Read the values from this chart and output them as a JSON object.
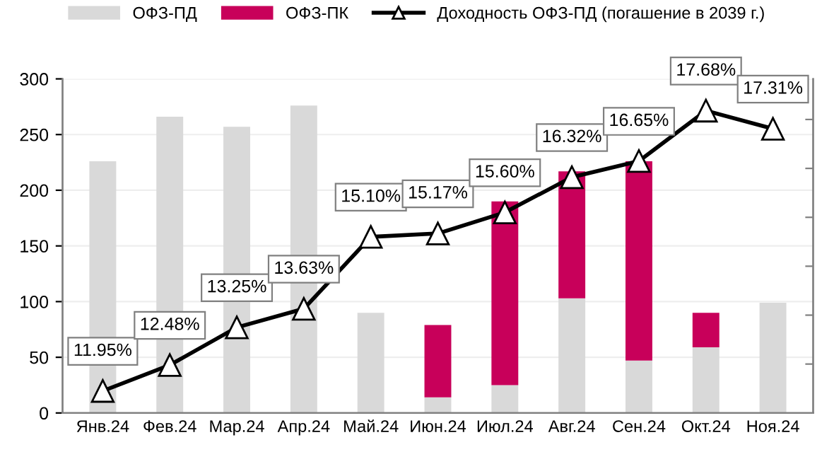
{
  "chart_data": {
    "type": "bar",
    "stacked": true,
    "categories": [
      "Янв.24",
      "Фев.24",
      "Мар.24",
      "Апр.24",
      "Май.24",
      "Июн.24",
      "Июл.24",
      "Авг.24",
      "Сен.24",
      "Окт.24",
      "Ноя.24"
    ],
    "series": [
      {
        "name": "ОФЗ-ПД",
        "color": "#d9d9d9",
        "values": [
          226,
          266,
          257,
          276,
          90,
          14,
          25,
          103,
          47,
          59,
          99
        ]
      },
      {
        "name": "ОФЗ-ПК",
        "color": "#c8005a",
        "values": [
          null,
          null,
          null,
          null,
          null,
          65,
          165,
          114,
          179,
          31,
          null
        ]
      },
      {
        "name": "Доходность ОФЗ-ПД (погашение в 2039 г.)",
        "type": "line",
        "axis": "y2",
        "color": "#000000",
        "marker": "triangle",
        "line_style": "solid",
        "values": [
          11.95,
          12.48,
          13.25,
          13.63,
          15.1,
          15.17,
          15.6,
          16.32,
          16.65,
          17.68,
          17.31
        ],
        "value_labels": [
          "11.95%",
          "12.48%",
          "13.25%",
          "13.63%",
          "15.10%",
          "15.17%",
          "15.60%",
          "16.32%",
          "16.65%",
          "17.68%",
          "17.31%"
        ]
      }
    ],
    "ylim": [
      0,
      300
    ],
    "yticks": [
      0,
      50,
      100,
      150,
      200,
      250,
      300
    ],
    "y2lim": [
      11.5,
      18.33
    ],
    "y2ticks": [
      {
        "value": 12.5,
        "label": null
      },
      {
        "value": 13.5,
        "label": null
      },
      {
        "value": 14.5,
        "label": null
      },
      {
        "value": 15.5,
        "label": null
      },
      {
        "value": 16.5,
        "label": null
      },
      {
        "value": 17.5,
        "label": null
      }
    ],
    "grid": "y",
    "legend": "top"
  }
}
